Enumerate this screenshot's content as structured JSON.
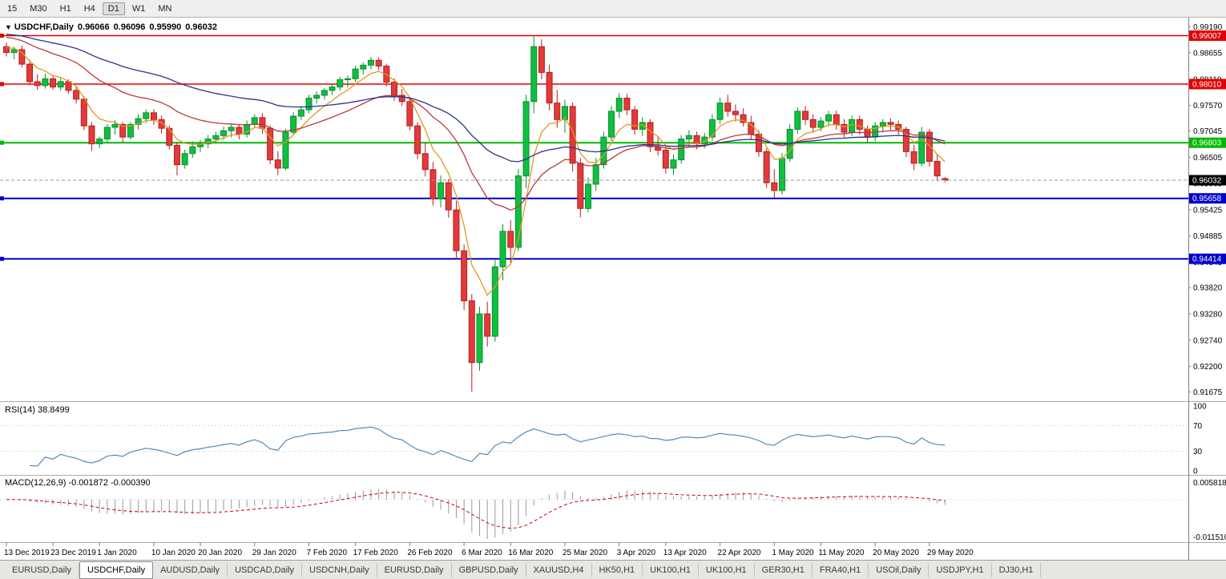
{
  "toolbar": {
    "timeframes": [
      "15",
      "M30",
      "H1",
      "H4",
      "D1",
      "W1",
      "MN"
    ],
    "active": "D1"
  },
  "symbol_overlay": {
    "dropdown_icon": "▼",
    "symbol": "USDCHF,Daily",
    "open": "0.96066",
    "high": "0.96096",
    "low": "0.95990",
    "close": "0.96032"
  },
  "chart_data": {
    "type": "candlestick",
    "symbol": "USDCHF",
    "timeframe": "Daily",
    "scale": {
      "price_max": 0.99345,
      "price_min": 0.915
    },
    "price_axis_ticks": [
      "0.99190",
      "0.98655",
      "0.98110",
      "0.97570",
      "0.97045",
      "0.96505",
      "0.95965",
      "0.95425",
      "0.94885",
      "0.94345",
      "0.93820",
      "0.93280",
      "0.92740",
      "0.92200",
      "0.91675"
    ],
    "hlines": [
      {
        "value": 0.99007,
        "label": "0.99007",
        "color": "#E10000",
        "width": 1.6
      },
      {
        "value": 0.9801,
        "label": "0.98010",
        "color": "#E10000",
        "width": 1.6
      },
      {
        "value": 0.96803,
        "label": "0.96803",
        "color": "#00BA00",
        "width": 2
      },
      {
        "value": 0.95658,
        "label": "0.95658",
        "color": "#0000CD",
        "width": 2
      },
      {
        "value": 0.94414,
        "label": "0.94414",
        "color": "#0000CD",
        "width": 2
      }
    ],
    "bid": {
      "value": 0.96032,
      "label": "0.96032",
      "box_color": "#000000",
      "line_color": "#9A9A9A"
    },
    "moving_averages": [
      {
        "name": "ma-fast",
        "period": 6,
        "seed": 0.988,
        "color": "#E09A20"
      },
      {
        "name": "ma-mid",
        "period": 22,
        "seed": 0.99,
        "color": "#B93A3A"
      },
      {
        "name": "ma-slow",
        "period": 50,
        "seed": 0.9905,
        "color": "#28338C"
      }
    ],
    "colors": {
      "up_fill": "#0FBF3F",
      "up_stroke": "#0A8F30",
      "down_fill": "#E23A3A",
      "down_stroke": "#B22020"
    },
    "date_labels": [
      [
        0,
        "13 Dec 2019"
      ],
      [
        6,
        "23 Dec 2019"
      ],
      [
        12,
        "1 Jan 2020"
      ],
      [
        19,
        "10 Jan 2020"
      ],
      [
        25,
        "20 Jan 2020"
      ],
      [
        32,
        "29 Jan 2020"
      ],
      [
        39,
        "7 Feb 2020"
      ],
      [
        45,
        "17 Feb 2020"
      ],
      [
        52,
        "26 Feb 2020"
      ],
      [
        59,
        "6 Mar 2020"
      ],
      [
        65,
        "16 Mar 2020"
      ],
      [
        72,
        "25 Mar 2020"
      ],
      [
        79,
        "3 Apr 2020"
      ],
      [
        85,
        "13 Apr 2020"
      ],
      [
        92,
        "22 Apr 2020"
      ],
      [
        99,
        "1 May 2020"
      ],
      [
        105,
        "11 May 2020"
      ],
      [
        112,
        "20 May 2020"
      ],
      [
        119,
        "29 May 2020"
      ]
    ],
    "candles": [
      [
        0.9878,
        0.9886,
        0.9858,
        0.9866
      ],
      [
        0.9866,
        0.9878,
        0.9852,
        0.9872
      ],
      [
        0.9872,
        0.988,
        0.9836,
        0.9842
      ],
      [
        0.9842,
        0.9851,
        0.9799,
        0.9806
      ],
      [
        0.9806,
        0.9821,
        0.9789,
        0.9798
      ],
      [
        0.9798,
        0.9823,
        0.9792,
        0.9812
      ],
      [
        0.9812,
        0.9818,
        0.9789,
        0.9795
      ],
      [
        0.9795,
        0.9813,
        0.9788,
        0.9806
      ],
      [
        0.9806,
        0.9811,
        0.9781,
        0.9788
      ],
      [
        0.9788,
        0.9796,
        0.9761,
        0.977
      ],
      [
        0.977,
        0.9776,
        0.9706,
        0.9715
      ],
      [
        0.9715,
        0.9723,
        0.9664,
        0.9678
      ],
      [
        0.9678,
        0.9693,
        0.9669,
        0.9688
      ],
      [
        0.9688,
        0.9719,
        0.9681,
        0.9712
      ],
      [
        0.9712,
        0.9727,
        0.9697,
        0.9718
      ],
      [
        0.9718,
        0.9723,
        0.9681,
        0.9692
      ],
      [
        0.9692,
        0.9723,
        0.9687,
        0.9718
      ],
      [
        0.9718,
        0.9739,
        0.9707,
        0.973
      ],
      [
        0.973,
        0.9749,
        0.9721,
        0.9742
      ],
      [
        0.9742,
        0.9749,
        0.9717,
        0.9728
      ],
      [
        0.9728,
        0.9736,
        0.9699,
        0.971
      ],
      [
        0.971,
        0.9716,
        0.9667,
        0.9675
      ],
      [
        0.9675,
        0.9681,
        0.9613,
        0.9635
      ],
      [
        0.9635,
        0.9666,
        0.9627,
        0.9658
      ],
      [
        0.9658,
        0.9683,
        0.9649,
        0.9672
      ],
      [
        0.9672,
        0.9686,
        0.9661,
        0.9678
      ],
      [
        0.9678,
        0.9696,
        0.9669,
        0.9688
      ],
      [
        0.9688,
        0.9703,
        0.9679,
        0.9695
      ],
      [
        0.9695,
        0.9713,
        0.9687,
        0.9705
      ],
      [
        0.9705,
        0.9719,
        0.9691,
        0.9712
      ],
      [
        0.9712,
        0.9719,
        0.9687,
        0.9698
      ],
      [
        0.9698,
        0.9726,
        0.9691,
        0.9718
      ],
      [
        0.9718,
        0.9739,
        0.9711,
        0.9732
      ],
      [
        0.9732,
        0.9741,
        0.9699,
        0.971
      ],
      [
        0.971,
        0.9716,
        0.9636,
        0.9645
      ],
      [
        0.9645,
        0.9663,
        0.9614,
        0.9628
      ],
      [
        0.9628,
        0.9709,
        0.9624,
        0.9702
      ],
      [
        0.9702,
        0.9743,
        0.9697,
        0.9735
      ],
      [
        0.9735,
        0.9756,
        0.9727,
        0.9748
      ],
      [
        0.9748,
        0.9779,
        0.9741,
        0.9772
      ],
      [
        0.9772,
        0.9786,
        0.9761,
        0.9778
      ],
      [
        0.9778,
        0.9793,
        0.9769,
        0.9788
      ],
      [
        0.9788,
        0.9801,
        0.9779,
        0.9795
      ],
      [
        0.9795,
        0.9816,
        0.9787,
        0.981
      ],
      [
        0.981,
        0.9819,
        0.9794,
        0.9812
      ],
      [
        0.9812,
        0.9839,
        0.9805,
        0.9832
      ],
      [
        0.9832,
        0.9846,
        0.9821,
        0.984
      ],
      [
        0.984,
        0.9857,
        0.9831,
        0.985
      ],
      [
        0.985,
        0.9856,
        0.983,
        0.9838
      ],
      [
        0.9838,
        0.9843,
        0.9796,
        0.9805
      ],
      [
        0.9805,
        0.9813,
        0.9766,
        0.9778
      ],
      [
        0.9778,
        0.9791,
        0.9756,
        0.9765
      ],
      [
        0.9765,
        0.9773,
        0.9706,
        0.9715
      ],
      [
        0.9715,
        0.9723,
        0.9646,
        0.9658
      ],
      [
        0.9658,
        0.9681,
        0.9611,
        0.9625
      ],
      [
        0.9625,
        0.9641,
        0.9551,
        0.9565
      ],
      [
        0.9565,
        0.9613,
        0.9547,
        0.9598
      ],
      [
        0.9598,
        0.9606,
        0.9526,
        0.9542
      ],
      [
        0.9542,
        0.9561,
        0.9441,
        0.9458
      ],
      [
        0.9458,
        0.9471,
        0.9336,
        0.9355
      ],
      [
        0.9355,
        0.9369,
        0.9168,
        0.9228
      ],
      [
        0.9228,
        0.9343,
        0.9211,
        0.9328
      ],
      [
        0.9328,
        0.9353,
        0.9261,
        0.9282
      ],
      [
        0.9282,
        0.9439,
        0.9271,
        0.9425
      ],
      [
        0.9425,
        0.9513,
        0.9397,
        0.9498
      ],
      [
        0.9498,
        0.9521,
        0.9431,
        0.9465
      ],
      [
        0.9465,
        0.9626,
        0.9457,
        0.9612
      ],
      [
        0.9612,
        0.9779,
        0.9587,
        0.9765
      ],
      [
        0.9765,
        0.9901,
        0.9741,
        0.9878
      ],
      [
        0.9878,
        0.9893,
        0.9811,
        0.9825
      ],
      [
        0.9825,
        0.9841,
        0.9747,
        0.9762
      ],
      [
        0.9762,
        0.9789,
        0.9711,
        0.9728
      ],
      [
        0.9728,
        0.9769,
        0.9701,
        0.9755
      ],
      [
        0.9755,
        0.9763,
        0.9621,
        0.9638
      ],
      [
        0.9638,
        0.9649,
        0.9527,
        0.9545
      ],
      [
        0.9545,
        0.9609,
        0.9537,
        0.9595
      ],
      [
        0.9595,
        0.9649,
        0.9581,
        0.9635
      ],
      [
        0.9635,
        0.9703,
        0.9627,
        0.9692
      ],
      [
        0.9692,
        0.9756,
        0.9684,
        0.9745
      ],
      [
        0.9745,
        0.9783,
        0.9731,
        0.9772
      ],
      [
        0.9772,
        0.9781,
        0.9737,
        0.9748
      ],
      [
        0.9748,
        0.9756,
        0.9697,
        0.9708
      ],
      [
        0.9708,
        0.9733,
        0.9694,
        0.9722
      ],
      [
        0.9722,
        0.9729,
        0.9661,
        0.9672
      ],
      [
        0.9672,
        0.9693,
        0.9654,
        0.9665
      ],
      [
        0.9665,
        0.9673,
        0.9617,
        0.9628
      ],
      [
        0.9628,
        0.9656,
        0.9614,
        0.9645
      ],
      [
        0.9645,
        0.9696,
        0.9637,
        0.9688
      ],
      [
        0.9688,
        0.9706,
        0.9671,
        0.9695
      ],
      [
        0.9695,
        0.9703,
        0.9667,
        0.9678
      ],
      [
        0.9678,
        0.9701,
        0.9669,
        0.9692
      ],
      [
        0.9692,
        0.9739,
        0.9684,
        0.9728
      ],
      [
        0.9728,
        0.9773,
        0.9719,
        0.9762
      ],
      [
        0.9762,
        0.9779,
        0.9734,
        0.9745
      ],
      [
        0.9745,
        0.9759,
        0.9724,
        0.9738
      ],
      [
        0.9738,
        0.9751,
        0.9714,
        0.9722
      ],
      [
        0.9722,
        0.9736,
        0.9687,
        0.9698
      ],
      [
        0.9698,
        0.9706,
        0.9651,
        0.9662
      ],
      [
        0.9662,
        0.9669,
        0.9587,
        0.9598
      ],
      [
        0.9598,
        0.9626,
        0.9567,
        0.9582
      ],
      [
        0.9582,
        0.9659,
        0.9574,
        0.9648
      ],
      [
        0.9648,
        0.9719,
        0.9641,
        0.9708
      ],
      [
        0.9708,
        0.9753,
        0.9699,
        0.9745
      ],
      [
        0.9745,
        0.9756,
        0.9717,
        0.9728
      ],
      [
        0.9728,
        0.9739,
        0.9701,
        0.9712
      ],
      [
        0.9712,
        0.9733,
        0.9704,
        0.9725
      ],
      [
        0.9725,
        0.9746,
        0.9714,
        0.9738
      ],
      [
        0.9738,
        0.9746,
        0.9707,
        0.9718
      ],
      [
        0.9718,
        0.9729,
        0.9691,
        0.9702
      ],
      [
        0.9702,
        0.9736,
        0.9694,
        0.9728
      ],
      [
        0.9728,
        0.9736,
        0.9697,
        0.9708
      ],
      [
        0.9708,
        0.9716,
        0.9681,
        0.9692
      ],
      [
        0.9692,
        0.9723,
        0.9684,
        0.9715
      ],
      [
        0.9715,
        0.9729,
        0.9701,
        0.9722
      ],
      [
        0.9722,
        0.9731,
        0.9707,
        0.9718
      ],
      [
        0.9718,
        0.9726,
        0.9697,
        0.9708
      ],
      [
        0.9708,
        0.9713,
        0.9651,
        0.9662
      ],
      [
        0.9662,
        0.9676,
        0.9624,
        0.9638
      ],
      [
        0.9638,
        0.9713,
        0.9631,
        0.9702
      ],
      [
        0.9702,
        0.9709,
        0.9631,
        0.9642
      ],
      [
        0.9642,
        0.9656,
        0.9601,
        0.9612
      ],
      [
        0.96066,
        0.96096,
        0.9599,
        0.96032
      ]
    ]
  },
  "rsi": {
    "label": "RSI(14) 38.8499",
    "period": 14,
    "value": "38.8499",
    "levels": [
      30,
      70
    ],
    "axis_labels": [
      {
        "v": 100,
        "t": "100"
      },
      {
        "v": 70,
        "t": "70"
      },
      {
        "v": 30,
        "t": "30"
      },
      {
        "v": 0,
        "t": "0"
      }
    ],
    "color": "#4A7FB5"
  },
  "macd": {
    "label": "MACD(12,26,9) -0.001872 -0.000390",
    "fast": 12,
    "slow": 26,
    "signal": 9,
    "value": "-0.001872",
    "signal_value": "-0.000390",
    "axis_max": 0.005818,
    "axis_min": -0.01151,
    "axis_max_label": "0.005818",
    "axis_min_label": "-0.011510",
    "histogram_color": "#9A9A9A",
    "signal_color": "#CC0000"
  },
  "tabs": {
    "active_index": 1,
    "items": [
      "EURUSD,Daily",
      "USDCHF,Daily",
      "AUDUSD,Daily",
      "USDCAD,Daily",
      "USDCNH,Daily",
      "EURUSD,Daily",
      "GBPUSD,Daily",
      "XAUUSD,H4",
      "HK50,H1",
      "UK100,H1",
      "UK100,H1",
      "GER30,H1",
      "FRA40,H1",
      "USOil,Daily",
      "USDJPY,H1",
      "DJ30,H1"
    ]
  }
}
